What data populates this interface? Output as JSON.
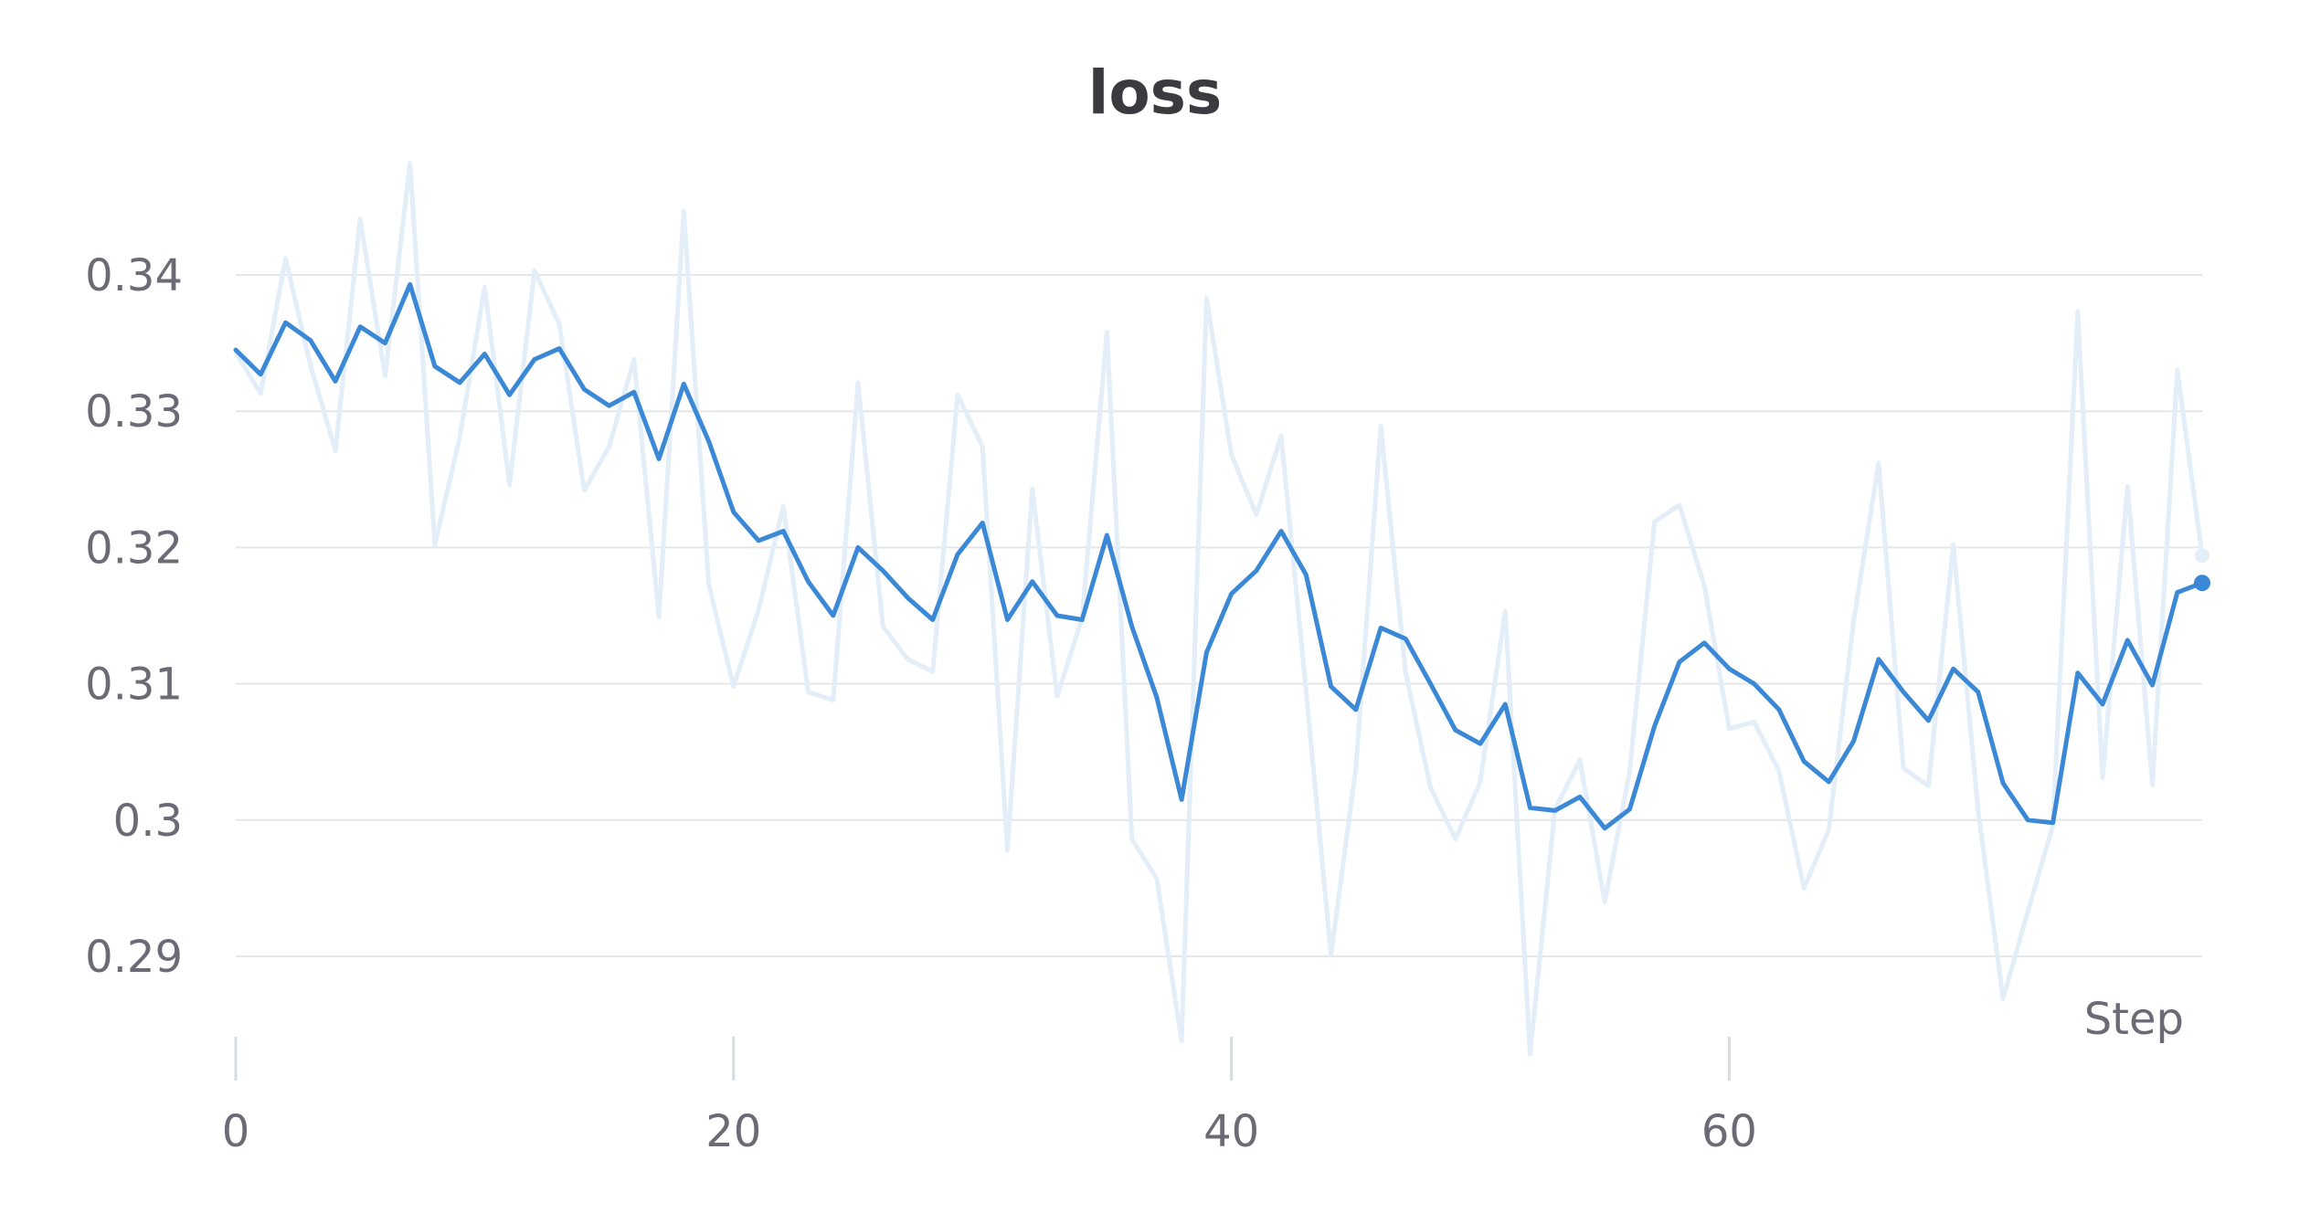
{
  "chart_data": {
    "type": "line",
    "title": "loss",
    "xlabel": "Step",
    "ylabel": "",
    "xlim": [
      0,
      79
    ],
    "ylim": [
      0.284,
      0.348
    ],
    "x_ticks": [
      0,
      20,
      40,
      60
    ],
    "x_tick_labels": [
      "0",
      "20",
      "40",
      "60"
    ],
    "y_ticks": [
      0.29,
      0.3,
      0.31,
      0.32,
      0.33,
      0.34
    ],
    "y_tick_labels": [
      "0.29",
      "0.3",
      "0.31",
      "0.32",
      "0.33",
      "0.34"
    ],
    "grid": true,
    "legend": "none",
    "colors": {
      "raw": "#e3eef9",
      "smoothed": "#3a88d6"
    },
    "series": [
      {
        "values": [
          0.3343,
          0.3313,
          0.3412,
          0.3334,
          0.3271,
          0.3441,
          0.3326,
          0.3482,
          0.3202,
          0.3281,
          0.3391,
          0.3246,
          0.3403,
          0.3364,
          0.3242,
          0.3274,
          0.3338,
          0.3149,
          0.3447,
          0.3173,
          0.3098,
          0.3154,
          0.323,
          0.3094,
          0.3088,
          0.3321,
          0.3142,
          0.3118,
          0.3109,
          0.3312,
          0.3274,
          0.2978,
          0.3243,
          0.3091,
          0.3148,
          0.3358,
          0.2986,
          0.2957,
          0.2838,
          0.3383,
          0.3268,
          0.3224,
          0.3282,
          0.3095,
          0.2901,
          0.3038,
          0.3289,
          0.3108,
          0.3024,
          0.2986,
          0.3028,
          0.3153,
          0.2828,
          0.3008,
          0.3044,
          0.294,
          0.3036,
          0.3219,
          0.3231,
          0.3172,
          0.3067,
          0.3072,
          0.3036,
          0.295,
          0.2993,
          0.3146,
          0.3262,
          0.3038,
          0.3025,
          0.3202,
          0.3007,
          0.2869,
          0.2933,
          0.2996,
          0.3373,
          0.3031,
          0.3245,
          0.3026,
          0.333,
          0.3194
        ]
      },
      {
        "values": [
          0.3345,
          0.3327,
          0.3365,
          0.3352,
          0.3322,
          0.3362,
          0.335,
          0.3393,
          0.3333,
          0.3321,
          0.3342,
          0.3312,
          0.3338,
          0.3346,
          0.3316,
          0.3304,
          0.3314,
          0.3265,
          0.332,
          0.3278,
          0.3226,
          0.3205,
          0.3212,
          0.3175,
          0.315,
          0.32,
          0.3183,
          0.3163,
          0.3147,
          0.3195,
          0.3218,
          0.3147,
          0.3175,
          0.315,
          0.3147,
          0.3209,
          0.3142,
          0.309,
          0.3015,
          0.3123,
          0.3166,
          0.3183,
          0.3212,
          0.318,
          0.3098,
          0.3081,
          0.3141,
          0.3133,
          0.31,
          0.3066,
          0.3056,
          0.3085,
          0.3009,
          0.3007,
          0.3017,
          0.2994,
          0.3008,
          0.3069,
          0.3116,
          0.313,
          0.3111,
          0.31,
          0.3081,
          0.3043,
          0.3028,
          0.3058,
          0.3118,
          0.3094,
          0.3073,
          0.3111,
          0.3094,
          0.3027,
          0.3,
          0.2998,
          0.3108,
          0.3085,
          0.3132,
          0.3099,
          0.3167,
          0.3174
        ]
      }
    ]
  }
}
